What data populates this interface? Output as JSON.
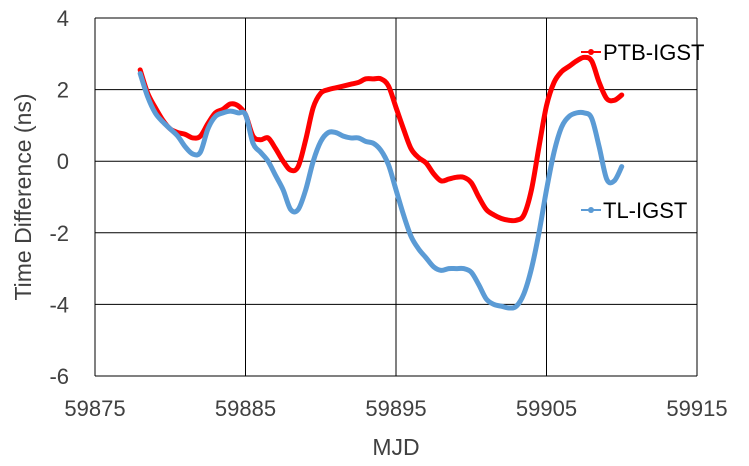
{
  "chart_data": {
    "type": "line",
    "title": "",
    "xlabel": "MJD",
    "ylabel": "Time Difference (ns)",
    "xlim": [
      59875,
      59915
    ],
    "ylim": [
      -6,
      4
    ],
    "xticks": [
      59875,
      59885,
      59895,
      59905,
      59915
    ],
    "yticks": [
      -6,
      -4,
      -2,
      0,
      2,
      4
    ],
    "xtick_labels": [
      "59875",
      "59885",
      "59895",
      "59905",
      "59915"
    ],
    "ytick_labels": [
      "-6",
      "-4",
      "-2",
      "0",
      "2",
      "4"
    ],
    "grid": true,
    "legend_placement": "inline-right",
    "series": [
      {
        "name": "PTB-IGST",
        "color": "#ff0000",
        "x": [
          59878.0,
          59878.5,
          59879.0,
          59879.5,
          59880.0,
          59880.5,
          59881.0,
          59881.5,
          59882.0,
          59882.5,
          59883.0,
          59883.5,
          59884.0,
          59884.5,
          59885.0,
          59885.5,
          59886.0,
          59886.5,
          59887.0,
          59887.5,
          59888.0,
          59888.5,
          59889.0,
          59889.5,
          59890.0,
          59890.5,
          59891.0,
          59891.5,
          59892.0,
          59892.5,
          59893.0,
          59893.5,
          59894.0,
          59894.5,
          59895.0,
          59895.5,
          59896.0,
          59896.5,
          59897.0,
          59897.5,
          59898.0,
          59898.5,
          59899.0,
          59899.5,
          59900.0,
          59900.5,
          59901.0,
          59901.5,
          59902.0,
          59902.5,
          59903.0,
          59903.5,
          59904.0,
          59904.5,
          59905.0,
          59905.5,
          59906.0,
          59906.5,
          59907.0,
          59907.5,
          59908.0,
          59908.5,
          59909.0,
          59909.5,
          59910.0
        ],
        "y": [
          2.55,
          1.9,
          1.5,
          1.15,
          0.9,
          0.8,
          0.75,
          0.65,
          0.7,
          1.05,
          1.35,
          1.45,
          1.6,
          1.55,
          1.3,
          0.7,
          0.6,
          0.65,
          0.35,
          0.0,
          -0.25,
          -0.15,
          0.6,
          1.5,
          1.9,
          2.0,
          2.05,
          2.1,
          2.15,
          2.2,
          2.3,
          2.3,
          2.3,
          2.1,
          1.5,
          0.9,
          0.35,
          0.1,
          -0.05,
          -0.35,
          -0.55,
          -0.5,
          -0.45,
          -0.45,
          -0.6,
          -1.0,
          -1.35,
          -1.5,
          -1.6,
          -1.65,
          -1.65,
          -1.5,
          -0.8,
          0.4,
          1.55,
          2.2,
          2.5,
          2.65,
          2.8,
          2.9,
          2.8,
          2.2,
          1.75,
          1.7,
          1.85
        ]
      },
      {
        "name": "TL-IGST",
        "color": "#5b9bd5",
        "x": [
          59878.0,
          59878.5,
          59879.0,
          59879.5,
          59880.0,
          59880.5,
          59881.0,
          59881.5,
          59882.0,
          59882.5,
          59883.0,
          59883.5,
          59884.0,
          59884.5,
          59885.0,
          59885.5,
          59886.0,
          59886.5,
          59887.0,
          59887.5,
          59888.0,
          59888.5,
          59889.0,
          59889.5,
          59890.0,
          59890.5,
          59891.0,
          59891.5,
          59892.0,
          59892.5,
          59893.0,
          59893.5,
          59894.0,
          59894.5,
          59895.0,
          59895.5,
          59896.0,
          59896.5,
          59897.0,
          59897.5,
          59898.0,
          59898.5,
          59899.0,
          59899.5,
          59900.0,
          59900.5,
          59901.0,
          59901.5,
          59902.0,
          59902.5,
          59903.0,
          59903.5,
          59904.0,
          59904.5,
          59905.0,
          59905.5,
          59906.0,
          59906.5,
          59907.0,
          59907.5,
          59908.0,
          59908.5,
          59909.0,
          59909.5,
          59910.0
        ],
        "y": [
          2.45,
          1.8,
          1.35,
          1.1,
          0.9,
          0.7,
          0.4,
          0.2,
          0.25,
          0.9,
          1.25,
          1.35,
          1.4,
          1.35,
          1.3,
          0.5,
          0.25,
          0.0,
          -0.4,
          -0.8,
          -1.35,
          -1.35,
          -0.8,
          0.0,
          0.55,
          0.8,
          0.8,
          0.7,
          0.65,
          0.65,
          0.55,
          0.5,
          0.3,
          -0.1,
          -0.8,
          -1.5,
          -2.1,
          -2.45,
          -2.7,
          -2.95,
          -3.05,
          -3.0,
          -3.0,
          -3.0,
          -3.1,
          -3.45,
          -3.85,
          -4.0,
          -4.05,
          -4.1,
          -4.05,
          -3.7,
          -3.0,
          -2.0,
          -0.8,
          0.25,
          0.95,
          1.25,
          1.35,
          1.35,
          1.2,
          0.4,
          -0.5,
          -0.55,
          -0.15
        ]
      }
    ]
  }
}
